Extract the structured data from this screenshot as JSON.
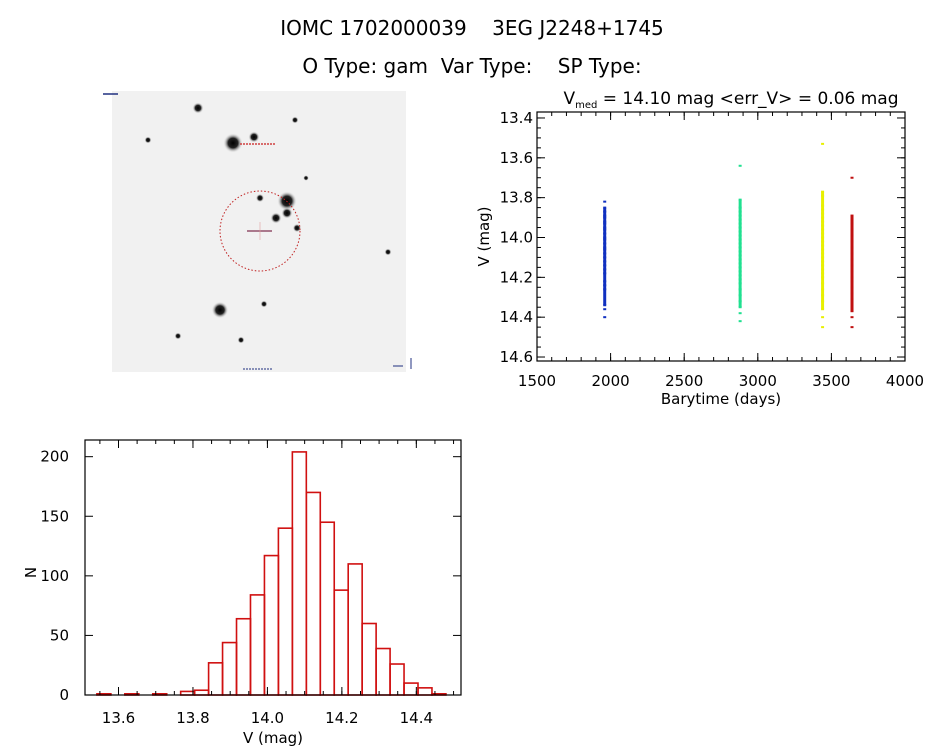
{
  "header": {
    "title": "IOMC 1702000039    3EG J2248+1745",
    "subtitle": "O Type: gam  Var Type:    SP Type:"
  },
  "image_panel": {
    "labels": [
      "",
      "",
      "",
      ""
    ]
  },
  "chart_data": [
    {
      "type": "scatter",
      "title_main": "V",
      "title_sub": "med",
      "title_rest": " = 14.10 mag <err_V> = 0.06 mag",
      "xlabel": "Barytime (days)",
      "ylabel": "V (mag)",
      "xlim": [
        1500,
        4000
      ],
      "ylim": [
        14.62,
        13.37
      ],
      "y_inverted": true,
      "xticks": [
        1500,
        2000,
        2500,
        3000,
        3500,
        4000
      ],
      "yticks": [
        13.4,
        13.6,
        13.8,
        14.0,
        14.2,
        14.4,
        14.6
      ],
      "series": [
        {
          "color": "#1030c0",
          "x": 1960,
          "values": [
            13.82,
            13.85,
            13.87,
            13.89,
            13.9,
            13.92,
            13.93,
            13.95,
            13.96,
            13.98,
            14.0,
            14.01,
            14.03,
            14.05,
            14.06,
            14.08,
            14.1,
            14.12,
            14.14,
            14.16,
            14.18,
            14.22,
            14.24,
            14.26,
            14.34,
            14.36,
            14.4
          ]
        },
        {
          "color": "#20e090",
          "x": 2880,
          "values": [
            13.64,
            13.81,
            13.85,
            13.87,
            13.89,
            13.91,
            13.93,
            13.95,
            13.97,
            13.99,
            14.01,
            14.03,
            14.05,
            14.07,
            14.09,
            14.11,
            14.13,
            14.15,
            14.17,
            14.19,
            14.21,
            14.23,
            14.26,
            14.29,
            14.32,
            14.35,
            14.38,
            14.42
          ]
        },
        {
          "color": "#e8f000",
          "x": 3440,
          "values": [
            13.53,
            13.77,
            13.79,
            13.84,
            13.86,
            13.88,
            13.9,
            13.92,
            13.94,
            13.96,
            13.98,
            14.0,
            14.02,
            14.04,
            14.06,
            14.08,
            14.1,
            14.12,
            14.14,
            14.16,
            14.18,
            14.2,
            14.23,
            14.26,
            14.29,
            14.32,
            14.36,
            14.4,
            14.45
          ]
        },
        {
          "color": "#c01010",
          "x": 3640,
          "values": [
            13.7,
            13.89,
            13.91,
            13.93,
            13.96,
            13.99,
            14.02,
            14.05,
            14.08,
            14.11,
            14.14,
            14.17,
            14.2,
            14.22,
            14.25,
            14.28,
            14.31,
            14.37,
            14.4,
            14.45
          ]
        }
      ]
    },
    {
      "type": "bar",
      "subtype": "histogram",
      "xlabel": "V (mag)",
      "ylabel": "N",
      "xlim": [
        13.51,
        14.52
      ],
      "ylim": [
        0,
        214
      ],
      "xticks": [
        13.6,
        13.8,
        14.0,
        14.2,
        14.4
      ],
      "yticks": [
        0,
        50,
        100,
        150,
        200
      ],
      "bin_start": 13.542,
      "bin_width": 0.0375,
      "color": "#d01010",
      "values": [
        1,
        0,
        1,
        0,
        1,
        0,
        3,
        4,
        27,
        44,
        64,
        84,
        117,
        140,
        204,
        170,
        145,
        88,
        110,
        60,
        39,
        26,
        10,
        6,
        1
      ]
    }
  ]
}
